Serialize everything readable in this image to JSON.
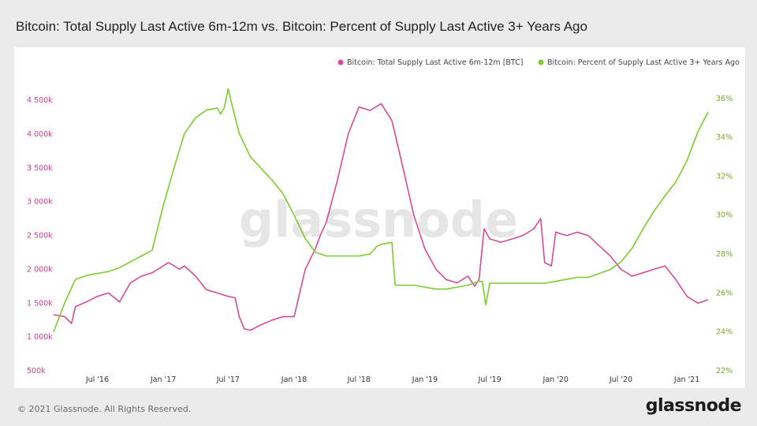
{
  "title": "Bitcoin: Total Supply Last Active 6m-12m vs. Bitcoin: Percent of Supply Last Active 3+ Years Ago",
  "footer": "© 2021 Glassnode. All Rights Reserved.",
  "brand": "glassnode",
  "watermark": "glassnode",
  "colors": {
    "series1": "#d64a9c",
    "series2": "#7ccc2e",
    "left_axis": "#c2448e",
    "right_axis": "#7aa82a"
  },
  "chart_data": {
    "type": "line",
    "title": "Bitcoin: Total Supply Last Active 6m-12m vs. Bitcoin: Percent of Supply Last Active 3+ Years Ago",
    "x_ticks": [
      "Jul '16",
      "Jan '17",
      "Jul '17",
      "Jan '18",
      "Jul '18",
      "Jan '19",
      "Jul '19",
      "Jan '20",
      "Jul '20",
      "Jan '21"
    ],
    "y_left": {
      "ticks": [
        "500k",
        "1 000k",
        "1 500k",
        "2 000k",
        "2 500k",
        "3 000k",
        "3 500k",
        "4 000k",
        "4 500k"
      ],
      "range": [
        500000,
        4700000
      ]
    },
    "y_right": {
      "ticks": [
        "22%",
        "24%",
        "26%",
        "28%",
        "30%",
        "32%",
        "34%",
        "36%"
      ],
      "range": [
        22,
        36.6
      ]
    },
    "legend_position": "top-right",
    "series": [
      {
        "name": "Bitcoin: Total Supply Last Active 6m-12m [BTC]",
        "axis": "left",
        "x": [
          "2016-03-01",
          "2016-04-01",
          "2016-04-20",
          "2016-05-01",
          "2016-06-01",
          "2016-07-01",
          "2016-08-01",
          "2016-09-01",
          "2016-10-01",
          "2016-11-01",
          "2016-12-01",
          "2017-01-01",
          "2017-01-15",
          "2017-02-01",
          "2017-02-15",
          "2017-03-01",
          "2017-04-01",
          "2017-05-01",
          "2017-06-01",
          "2017-07-01",
          "2017-07-20",
          "2017-08-01",
          "2017-08-15",
          "2017-09-01",
          "2017-10-01",
          "2017-11-01",
          "2017-12-01",
          "2018-01-01",
          "2018-02-01",
          "2018-03-01",
          "2018-03-15",
          "2018-04-01",
          "2018-05-01",
          "2018-06-01",
          "2018-07-01",
          "2018-08-01",
          "2018-09-01",
          "2018-10-01",
          "2018-11-01",
          "2018-12-01",
          "2019-01-01",
          "2019-02-01",
          "2019-03-01",
          "2019-04-01",
          "2019-05-01",
          "2019-05-20",
          "2019-06-01",
          "2019-06-15",
          "2019-07-01",
          "2019-08-01",
          "2019-09-01",
          "2019-10-01",
          "2019-11-01",
          "2019-11-20",
          "2019-12-01",
          "2019-12-20",
          "2020-01-01",
          "2020-02-01",
          "2020-03-01",
          "2020-04-01",
          "2020-05-01",
          "2020-06-01",
          "2020-07-01",
          "2020-08-01",
          "2020-09-01",
          "2020-10-01",
          "2020-11-01",
          "2020-12-01",
          "2021-01-01",
          "2021-02-01",
          "2021-03-01"
        ],
        "values": [
          1330000,
          1300000,
          1200000,
          1450000,
          1520000,
          1600000,
          1650000,
          1520000,
          1800000,
          1900000,
          1950000,
          2050000,
          2100000,
          2050000,
          2000000,
          2050000,
          1900000,
          1700000,
          1650000,
          1600000,
          1580000,
          1300000,
          1120000,
          1100000,
          1180000,
          1250000,
          1300000,
          1300000,
          2000000,
          2300000,
          2500000,
          2700000,
          3300000,
          4000000,
          4400000,
          4350000,
          4450000,
          4200000,
          3500000,
          2800000,
          2300000,
          2000000,
          1850000,
          1800000,
          1900000,
          1750000,
          1850000,
          2600000,
          2450000,
          2400000,
          2450000,
          2500000,
          2600000,
          2750000,
          2100000,
          2050000,
          2550000,
          2500000,
          2550000,
          2500000,
          2350000,
          2200000,
          2000000,
          1900000,
          1950000,
          2000000,
          2050000,
          1850000,
          1600000,
          1500000,
          1550000
        ]
      },
      {
        "name": "Bitcoin: Percent of Supply Last Active 3+ Years Ago",
        "axis": "right",
        "x": [
          "2016-03-01",
          "2016-04-01",
          "2016-05-01",
          "2016-06-01",
          "2016-07-01",
          "2016-08-01",
          "2016-09-01",
          "2016-10-01",
          "2016-11-01",
          "2016-12-01",
          "2017-01-01",
          "2017-02-01",
          "2017-03-01",
          "2017-04-01",
          "2017-05-01",
          "2017-06-01",
          "2017-06-10",
          "2017-06-20",
          "2017-07-01",
          "2017-07-10",
          "2017-08-01",
          "2017-09-01",
          "2017-10-01",
          "2017-11-01",
          "2017-12-01",
          "2018-01-01",
          "2018-02-01",
          "2018-03-01",
          "2018-04-01",
          "2018-05-01",
          "2018-06-01",
          "2018-07-01",
          "2018-08-01",
          "2018-08-20",
          "2018-09-01",
          "2018-10-01",
          "2018-10-10",
          "2018-11-01",
          "2018-12-01",
          "2019-01-01",
          "2019-02-01",
          "2019-03-01",
          "2019-04-01",
          "2019-05-01",
          "2019-06-01",
          "2019-06-10",
          "2019-06-20",
          "2019-07-01",
          "2019-08-01",
          "2019-09-01",
          "2019-10-01",
          "2019-11-01",
          "2019-12-01",
          "2020-01-01",
          "2020-02-01",
          "2020-03-01",
          "2020-04-01",
          "2020-05-01",
          "2020-06-01",
          "2020-07-01",
          "2020-08-01",
          "2020-09-01",
          "2020-10-01",
          "2020-11-01",
          "2020-12-01",
          "2021-01-01",
          "2021-02-01",
          "2021-03-01"
        ],
        "values": [
          24.0,
          25.5,
          26.7,
          26.9,
          27.0,
          27.1,
          27.3,
          27.6,
          27.9,
          28.2,
          30.5,
          32.5,
          34.2,
          35.0,
          35.4,
          35.5,
          35.2,
          35.5,
          36.5,
          35.8,
          34.2,
          33.0,
          32.4,
          31.8,
          31.1,
          30.0,
          28.8,
          28.1,
          27.9,
          27.9,
          27.9,
          27.9,
          28.0,
          28.4,
          28.5,
          28.6,
          26.4,
          26.4,
          26.4,
          26.3,
          26.2,
          26.2,
          26.3,
          26.4,
          26.6,
          26.6,
          25.4,
          26.5,
          26.5,
          26.5,
          26.5,
          26.5,
          26.5,
          26.6,
          26.7,
          26.8,
          26.8,
          27.0,
          27.2,
          27.6,
          28.3,
          29.3,
          30.2,
          31.0,
          31.7,
          32.8,
          34.3,
          35.3
        ]
      }
    ]
  }
}
